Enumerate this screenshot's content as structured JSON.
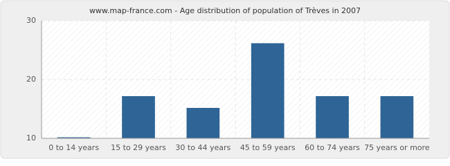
{
  "chart_data": {
    "type": "bar",
    "title": "www.map-france.com - Age distribution of population of Trèves in 2007",
    "categories": [
      "0 to 14 years",
      "15 to 29 years",
      "30 to 44 years",
      "45 to 59 years",
      "60 to 74 years",
      "75 years or more"
    ],
    "values": [
      10,
      17,
      15,
      26,
      17,
      17
    ],
    "color": "#2e6496",
    "ylim": [
      10,
      30
    ],
    "yticks": [
      10,
      20,
      30
    ],
    "grid": true
  }
}
